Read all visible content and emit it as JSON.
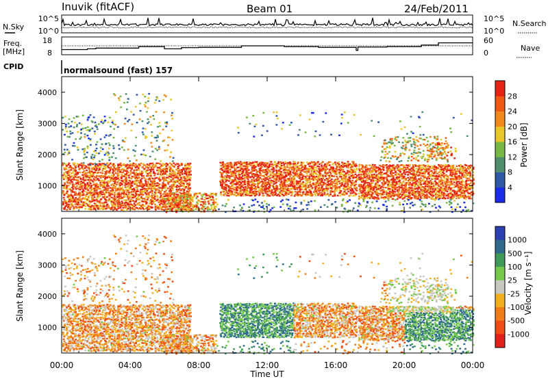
{
  "header": {
    "station": "Inuvik (fitACF)",
    "beam": "Beam 01",
    "date": "24/Feb/2011"
  },
  "noise_panel": {
    "left_label": "N.Sky",
    "right_label": "N.Search",
    "ticks_left": [
      "10^5",
      "10^0"
    ],
    "ticks_right": [
      "10^5",
      "10^0"
    ]
  },
  "freq_panel": {
    "left_label_line1": "Freq.",
    "left_label_line2": "[MHz]",
    "right_label": "Nave",
    "ticks_left": [
      "18",
      "8"
    ],
    "ticks_right": [
      "60",
      "0"
    ]
  },
  "cpid_panel": {
    "label": "CPID",
    "mode_text": "normalsound (fast) 157"
  },
  "chart_data": [
    {
      "type": "heatmap",
      "title": "Power",
      "ylabel": "Slant Range [km]",
      "ylim": [
        180,
        4500
      ],
      "yticks": [
        "1000",
        "2000",
        "3000",
        "4000"
      ],
      "colorbar": {
        "label": "Power [dB]",
        "ticks": [
          "4",
          "8",
          "12",
          "16",
          "20",
          "24",
          "28"
        ],
        "colors": [
          "#1a2be8",
          "#2f58a6",
          "#4f8f6e",
          "#77b845",
          "#e9c72b",
          "#f18a1e",
          "#ee5a13",
          "#e52312"
        ]
      }
    },
    {
      "type": "heatmap",
      "title": "Velocity",
      "ylabel": "Slant Range [km]",
      "xlabel": "Time UT",
      "ylim": [
        180,
        4500
      ],
      "yticks": [
        "1000",
        "2000",
        "3000",
        "4000"
      ],
      "xticks": [
        "00:00",
        "04:00",
        "08:00",
        "12:00",
        "16:00",
        "20:00",
        "00:00"
      ],
      "colorbar": {
        "label": "Velocity [m s⁻¹]",
        "ticks": [
          "1000",
          "500",
          "100",
          "25",
          "-25",
          "-100",
          "-500",
          "-1000"
        ],
        "colors": [
          "#2a3fb0",
          "#2f6a8e",
          "#3f9a5a",
          "#74c84a",
          "#c8c8c0",
          "#f3b01e",
          "#f07d1a",
          "#ee4d15",
          "#e0201a"
        ]
      }
    }
  ]
}
